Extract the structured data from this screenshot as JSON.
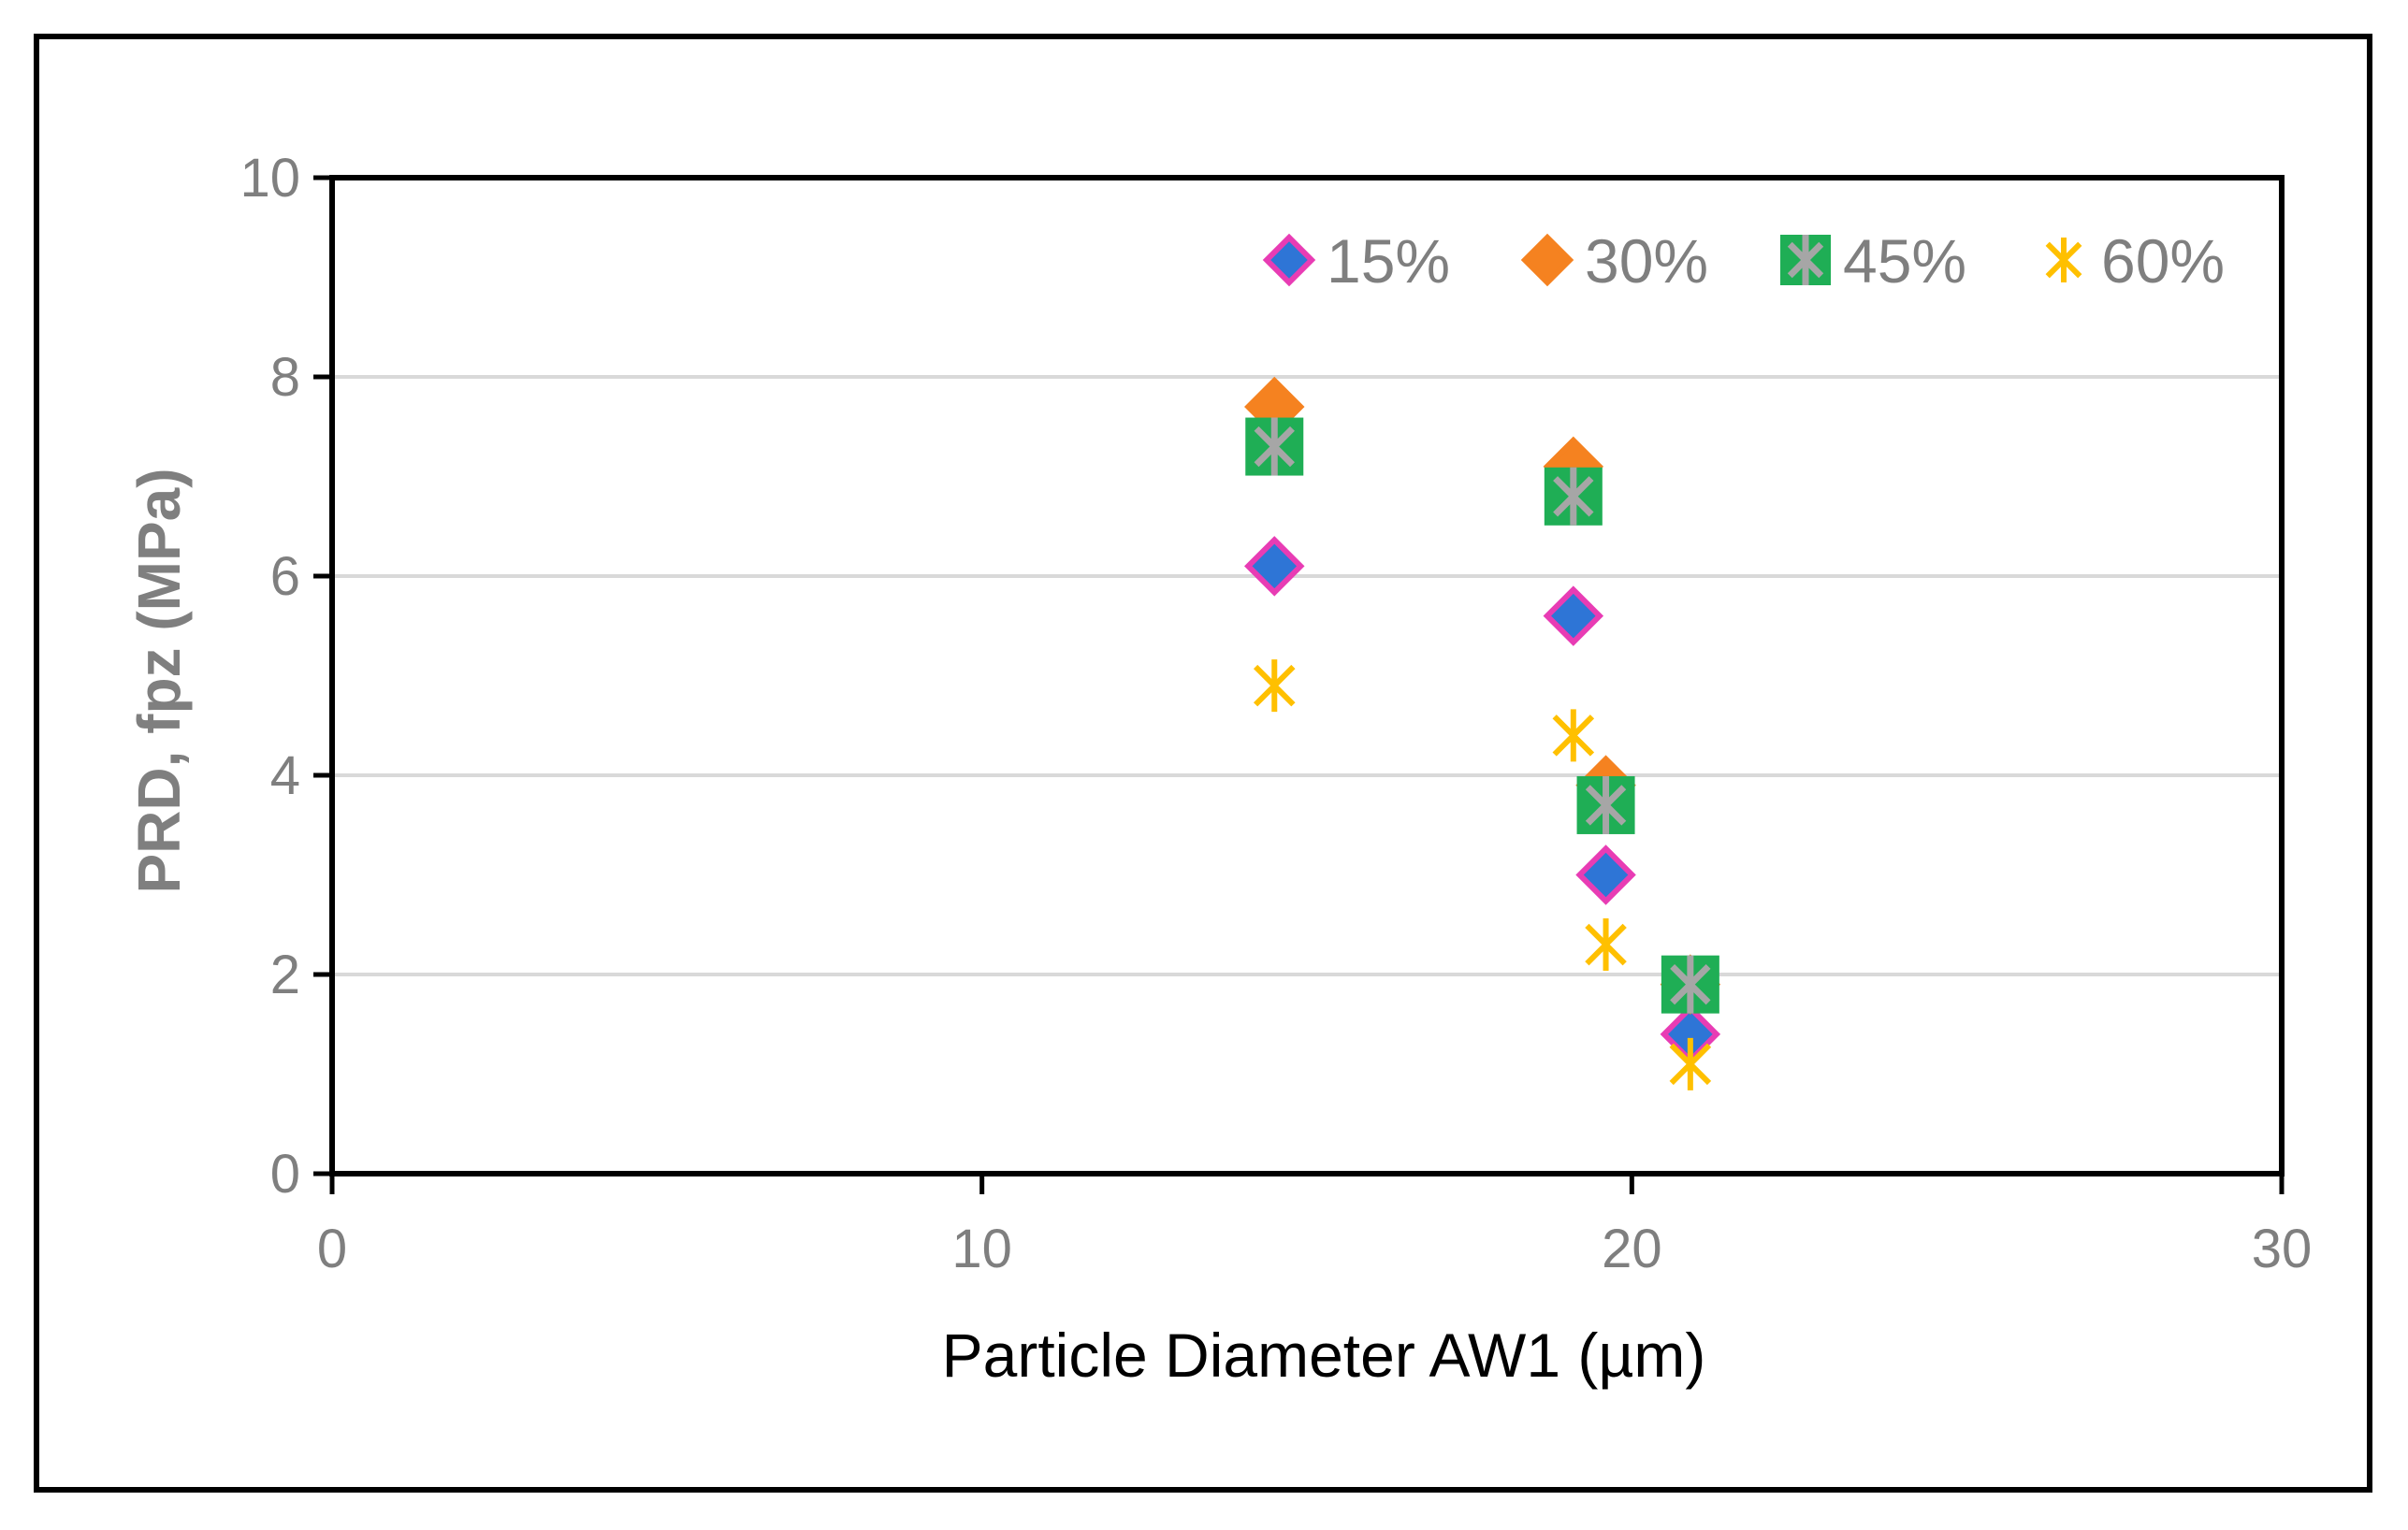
{
  "chart_data": {
    "type": "scatter",
    "title": "",
    "xlabel": "Particle Diameter AW1 (µm)",
    "ylabel": "PRD, fpz (MPa)",
    "xlim": [
      0,
      30
    ],
    "ylim": [
      0,
      10
    ],
    "xticks": [
      0,
      10,
      20,
      30
    ],
    "yticks": [
      0,
      2,
      4,
      6,
      8,
      10
    ],
    "grid": "horizontal",
    "legend_position": "top-right",
    "series": [
      {
        "name": "15%",
        "marker": "diamond",
        "color": "#2e75d6",
        "edge_color": "#e83cb4",
        "x": [
          14.5,
          19.1,
          19.6,
          20.9
        ],
        "y": [
          6.1,
          5.6,
          3.0,
          1.4
        ]
      },
      {
        "name": "30%",
        "marker": "diamond",
        "color": "#f58220",
        "edge_color": "#f58220",
        "x": [
          14.5,
          19.1,
          19.6,
          20.9
        ],
        "y": [
          7.7,
          7.1,
          3.9,
          1.9
        ]
      },
      {
        "name": "45%",
        "marker": "boxed-asterisk",
        "color": "#1fae55",
        "edge_color": "#a6a6a6",
        "x": [
          14.5,
          19.1,
          19.6,
          20.9
        ],
        "y": [
          7.3,
          6.8,
          3.7,
          1.9
        ]
      },
      {
        "name": "60%",
        "marker": "asterisk",
        "color": "#ffc000",
        "edge_color": "#ffc000",
        "x": [
          14.5,
          19.1,
          19.6,
          20.9
        ],
        "y": [
          4.9,
          4.4,
          2.3,
          1.1
        ]
      }
    ]
  }
}
